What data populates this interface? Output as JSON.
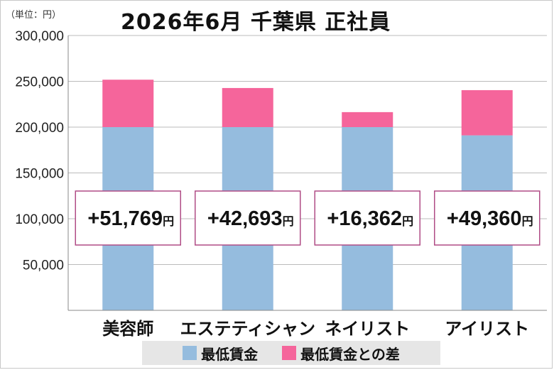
{
  "header": {
    "unit_label": "（単位：円）",
    "title": "2026年6月 千葉県 正社員"
  },
  "legend": [
    {
      "label": "最低賃金",
      "color": "#95bcde"
    },
    {
      "label": "最低賃金との差",
      "color": "#f5659b"
    }
  ],
  "chart_data": {
    "type": "bar",
    "stacked": true,
    "title": "2026年6月 千葉県 正社員",
    "categories": [
      "美容師",
      "エステティシャン",
      "ネイリスト",
      "アイリスト"
    ],
    "series": [
      {
        "name": "最低賃金",
        "color": "#95bcde",
        "values": [
          200000,
          200000,
          200000,
          191000
        ]
      },
      {
        "name": "最低賃金との差",
        "color": "#f5659b",
        "values": [
          51769,
          42693,
          16362,
          49360
        ]
      }
    ],
    "annotations": [
      {
        "value": "+51,769",
        "unit": "円"
      },
      {
        "value": "+42,693",
        "unit": "円"
      },
      {
        "value": "+16,362",
        "unit": "円"
      },
      {
        "value": "+49,360",
        "unit": "円"
      }
    ],
    "ylim": [
      0,
      300000
    ],
    "yticks": [
      "300,000",
      "250,000",
      "200,000",
      "150,000",
      "100,000",
      "50,000"
    ],
    "ytick_values": [
      300000,
      250000,
      200000,
      150000,
      100000,
      50000
    ],
    "grid": true,
    "legend_position": "bottom"
  }
}
